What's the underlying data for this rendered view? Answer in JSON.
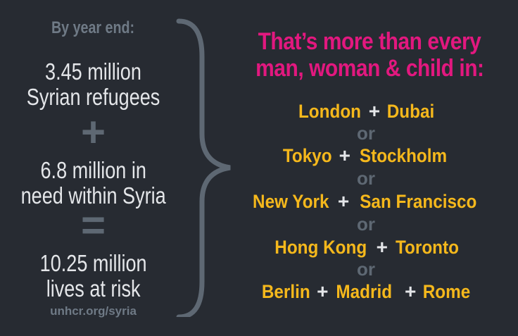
{
  "left": {
    "intro": "By year end:",
    "refugees_line1": "3.45 million",
    "refugees_line2": "Syrian refugees",
    "plus": "+",
    "need_line1": "6.8 million in",
    "need_line2": "need within Syria",
    "equals": "=",
    "total_line1": "10.25 million",
    "total_line2": "lives at risk",
    "url": "unhcr.org/syria"
  },
  "right": {
    "headline_line1": "That’s more than every",
    "headline_line2": "man, woman & child in:",
    "connector": "or",
    "plus": "+",
    "pairs": [
      [
        "London",
        "Dubai"
      ],
      [
        "Tokyo",
        "Stockholm"
      ],
      [
        "New York",
        "San Francisco"
      ],
      [
        "Hong Kong",
        "Toronto"
      ],
      [
        "Berlin",
        "Madrid",
        "Rome"
      ]
    ]
  },
  "colors": {
    "background": "#272b32",
    "headline": "#e2187f",
    "city": "#f5b81c",
    "muted": "#6f7a86"
  }
}
